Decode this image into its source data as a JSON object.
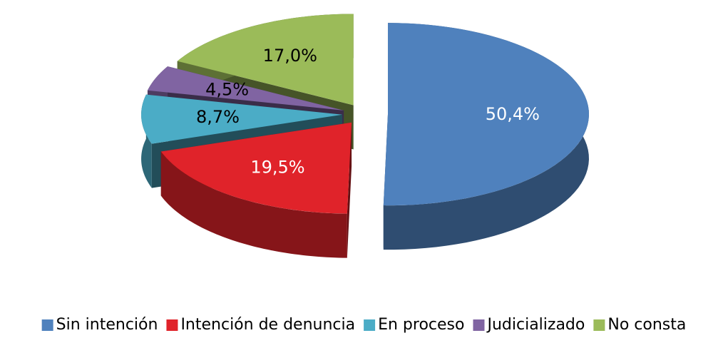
{
  "chart_data": {
    "type": "pie",
    "categories": [
      "Sin intención",
      "Intención de denuncia",
      "En proceso",
      "Judicializado",
      "No consta"
    ],
    "values": [
      50.4,
      19.5,
      8.7,
      4.5,
      17.0
    ],
    "value_labels": [
      "50,4%",
      "19,5%",
      "8,7%",
      "4,5%",
      "17,0%"
    ],
    "colors": [
      "#4f81bd",
      "#e0232a",
      "#4bacc6",
      "#8064a2",
      "#9bbb59"
    ],
    "label_colors": [
      "#ffffff",
      "#ffffff",
      "#000000",
      "#000000",
      "#000000"
    ],
    "legend": "bottom"
  }
}
